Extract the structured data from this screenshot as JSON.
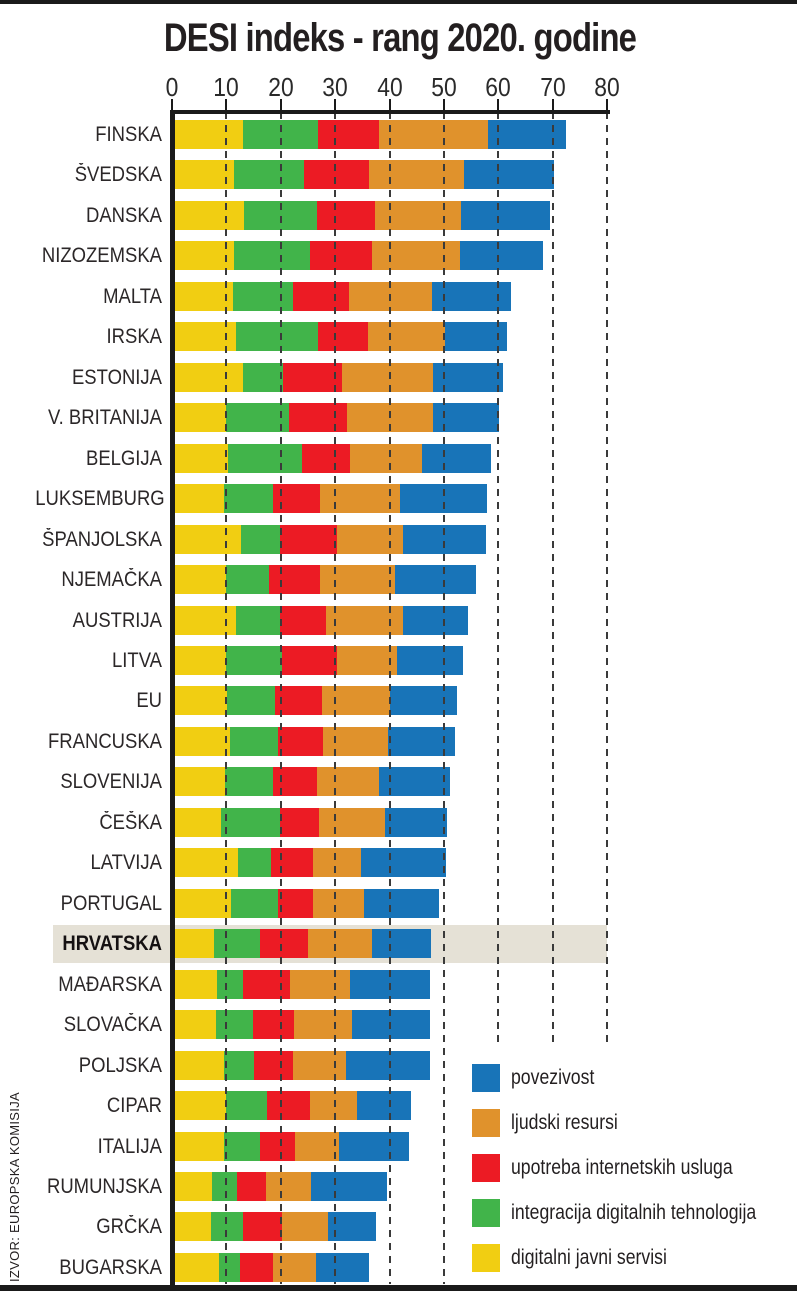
{
  "page": {
    "title": "DESI indeks - rang 2020. godine",
    "source": "IZVOR: EUROPSKA KOMISIJA"
  },
  "legend": {
    "position": "bottom-right",
    "items": [
      {
        "name": "povezivost",
        "color": "#1874B8"
      },
      {
        "name": "ljudski resursi",
        "color": "#E0922C"
      },
      {
        "name": "upotreba internetskih usluga",
        "color": "#EC1B24"
      },
      {
        "name": "integracija digitalnih tehnologija",
        "color": "#41B44A"
      },
      {
        "name": "digitalni javni servisi",
        "color": "#F1CE12"
      }
    ]
  },
  "highlight": {
    "country": "HRVATSKA",
    "band_color": "#E5E1D6"
  },
  "chart_data": {
    "type": "bar",
    "stacked": true,
    "orientation": "horizontal",
    "title": "DESI indeks - rang 2020. godine",
    "x_axis": {
      "min": 0,
      "max": 80,
      "ticks": [
        0,
        10,
        20,
        30,
        40,
        50,
        60,
        70,
        80
      ],
      "gridlines": "dashed-vertical"
    },
    "segments": [
      {
        "key": "digitalni javni servisi",
        "color": "#F1CE12"
      },
      {
        "key": "integracija digitalnih tehnologija",
        "color": "#41B44A"
      },
      {
        "key": "upotreba internetskih usluga",
        "color": "#EC1B24"
      },
      {
        "key": "ljudski resursi",
        "color": "#E0922C"
      },
      {
        "key": "povezivost",
        "color": "#1874B8"
      }
    ],
    "rows": [
      {
        "name": "FINSKA",
        "values": [
          13.1,
          13.7,
          11.3,
          20.0,
          14.4
        ],
        "total": 72.5
      },
      {
        "name": "ŠVEDSKA",
        "values": [
          11.4,
          12.9,
          11.9,
          17.4,
          16.7
        ],
        "total": 70.3
      },
      {
        "name": "DANSKA",
        "values": [
          13.2,
          13.4,
          10.7,
          15.8,
          16.4
        ],
        "total": 69.5
      },
      {
        "name": "NIZOZEMSKA",
        "values": [
          11.4,
          13.9,
          11.5,
          16.1,
          15.3
        ],
        "total": 68.2
      },
      {
        "name": "MALTA",
        "values": [
          11.2,
          11.0,
          10.3,
          15.3,
          14.5
        ],
        "total": 62.3
      },
      {
        "name": "IRSKA",
        "values": [
          11.8,
          15.0,
          9.2,
          14.2,
          11.4
        ],
        "total": 61.6
      },
      {
        "name": "ESTONIJA",
        "values": [
          13.1,
          7.3,
          10.9,
          16.7,
          12.8
        ],
        "total": 60.8
      },
      {
        "name": "V. BRITANIJA",
        "values": [
          9.9,
          11.6,
          10.7,
          15.8,
          12.1
        ],
        "total": 60.1
      },
      {
        "name": "BELGIJA",
        "values": [
          10.3,
          13.6,
          8.8,
          13.3,
          12.6
        ],
        "total": 58.6
      },
      {
        "name": "LUKSEMBURG",
        "values": [
          9.6,
          9.0,
          8.6,
          14.7,
          16.0
        ],
        "total": 57.9
      },
      {
        "name": "ŠPANJOLSKA",
        "values": [
          12.7,
          7.2,
          10.4,
          12.2,
          15.2
        ],
        "total": 57.7
      },
      {
        "name": "NJEMAČKA",
        "values": [
          9.9,
          7.9,
          9.4,
          13.8,
          14.9
        ],
        "total": 55.9
      },
      {
        "name": "AUSTRIJA",
        "values": [
          11.8,
          8.1,
          8.4,
          14.2,
          11.9
        ],
        "total": 54.4
      },
      {
        "name": "LITVA",
        "values": [
          9.9,
          10.3,
          10.1,
          11.1,
          12.1
        ],
        "total": 53.5
      },
      {
        "name": "EU",
        "values": [
          10.1,
          8.8,
          8.7,
          12.5,
          12.3
        ],
        "total": 52.4
      },
      {
        "name": "FRANCUSKA",
        "values": [
          10.7,
          8.8,
          8.3,
          11.9,
          12.3
        ],
        "total": 52.0
      },
      {
        "name": "SLOVENIJA",
        "values": [
          9.7,
          8.9,
          8.1,
          11.4,
          13.0
        ],
        "total": 51.1
      },
      {
        "name": "ČEŠKA",
        "values": [
          9.0,
          10.9,
          7.1,
          12.2,
          11.4
        ],
        "total": 50.6
      },
      {
        "name": "LATVIJA",
        "values": [
          12.1,
          6.1,
          7.7,
          8.8,
          15.7
        ],
        "total": 50.4
      },
      {
        "name": "PORTUGAL",
        "values": [
          10.8,
          8.7,
          6.4,
          9.4,
          13.8
        ],
        "total": 49.1
      },
      {
        "name": "HRVATSKA",
        "values": [
          7.7,
          8.5,
          8.8,
          11.8,
          10.8
        ],
        "total": 47.6
      },
      {
        "name": "MAĐARSKA",
        "values": [
          8.3,
          4.8,
          8.6,
          11.0,
          14.7
        ],
        "total": 47.4
      },
      {
        "name": "SLOVAČKA",
        "values": [
          8.1,
          6.8,
          7.5,
          10.7,
          14.4
        ],
        "total": 47.5
      },
      {
        "name": "POLJSKA",
        "values": [
          9.6,
          5.5,
          7.1,
          9.8,
          15.5
        ],
        "total": 47.5
      },
      {
        "name": "CIPAR",
        "values": [
          9.9,
          7.6,
          7.9,
          8.6,
          9.9
        ],
        "total": 43.9
      },
      {
        "name": "ITALIJA",
        "values": [
          9.6,
          6.6,
          6.4,
          8.1,
          12.9
        ],
        "total": 43.6
      },
      {
        "name": "RUMUNJSKA",
        "values": [
          7.4,
          4.5,
          5.4,
          8.3,
          13.9
        ],
        "total": 39.5
      },
      {
        "name": "GRČKA",
        "values": [
          7.2,
          5.9,
          7.1,
          8.5,
          8.8
        ],
        "total": 37.5
      },
      {
        "name": "BUGARSKA",
        "values": [
          8.6,
          3.9,
          6.1,
          7.9,
          9.7
        ],
        "total": 36.2
      }
    ]
  }
}
